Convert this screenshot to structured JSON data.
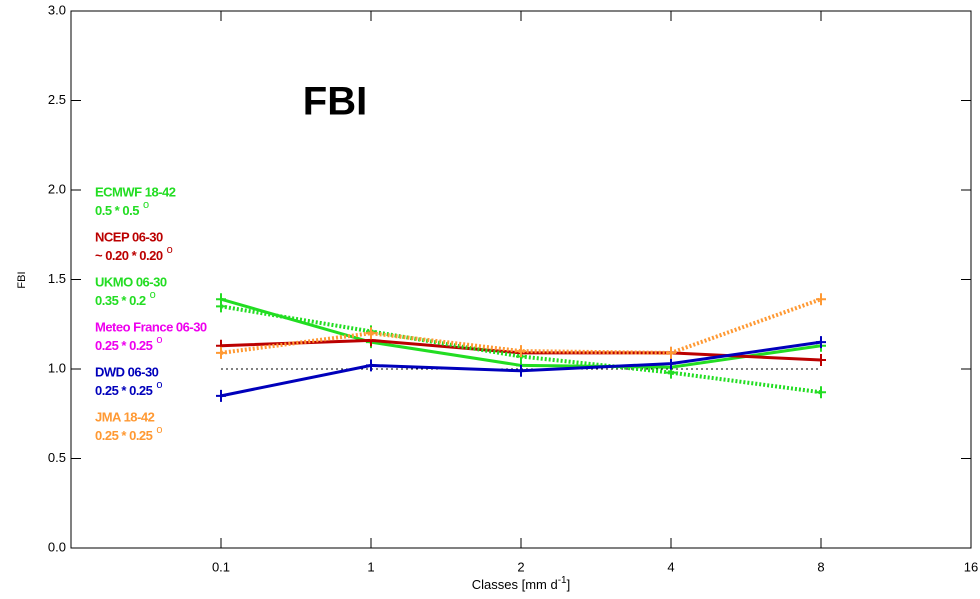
{
  "chart_data": {
    "type": "line",
    "annotation": "FBI",
    "y_label": "FBI",
    "x_label": "Classes [mm d",
    "x_label_sup": "-1",
    "x_label_end": "]",
    "degree_mark": "o",
    "categories": [
      null,
      "0.1",
      "1",
      "2",
      "4",
      "8",
      "16"
    ],
    "series": [
      {
        "name": "ECMWF 18-42",
        "resolution": "0.5 * 0.5",
        "color": "#22dd22",
        "dotted": false,
        "values": [
          null,
          1.39,
          1.15,
          1.02,
          1.01,
          1.13,
          null
        ]
      },
      {
        "name": "NCEP 06-30",
        "resolution": "~ 0.20 * 0.20",
        "color": "#bb0000",
        "dotted": false,
        "values": [
          null,
          1.13,
          1.16,
          1.09,
          1.09,
          1.05,
          null
        ]
      },
      {
        "name": "UKMO 06-30",
        "resolution": "0.35 * 0.2",
        "color": "#22dd22",
        "dotted": true,
        "values": [
          null,
          1.35,
          1.21,
          1.07,
          0.98,
          0.87,
          null
        ]
      },
      {
        "name": "Meteo France 06-30",
        "resolution": "0.25 * 0.25",
        "color": "#ee00ee",
        "dotted": false,
        "values": [
          null,
          null,
          null,
          null,
          null,
          null,
          null
        ]
      },
      {
        "name": "DWD 06-30",
        "resolution": "0.25 * 0.25",
        "color": "#0000bb",
        "dotted": false,
        "values": [
          null,
          0.85,
          1.02,
          0.99,
          1.03,
          1.15,
          null
        ]
      },
      {
        "name": "JMA 18-42",
        "resolution": "0.25 * 0.25",
        "color": "#ff9933",
        "dotted": true,
        "values": [
          null,
          1.09,
          1.2,
          1.1,
          1.09,
          1.39,
          null
        ]
      }
    ],
    "reference_line": 1,
    "ylim": [
      0,
      3
    ],
    "yticks": [
      {
        "value": 0,
        "label": "0.0"
      },
      {
        "value": 0.5,
        "label": "0.5"
      },
      {
        "value": 1,
        "label": "1.0"
      },
      {
        "value": 1.5,
        "label": "1.5"
      },
      {
        "value": 2,
        "label": "2.0"
      },
      {
        "value": 2.5,
        "label": "2.5"
      },
      {
        "value": 3,
        "label": "3.0"
      }
    ]
  }
}
